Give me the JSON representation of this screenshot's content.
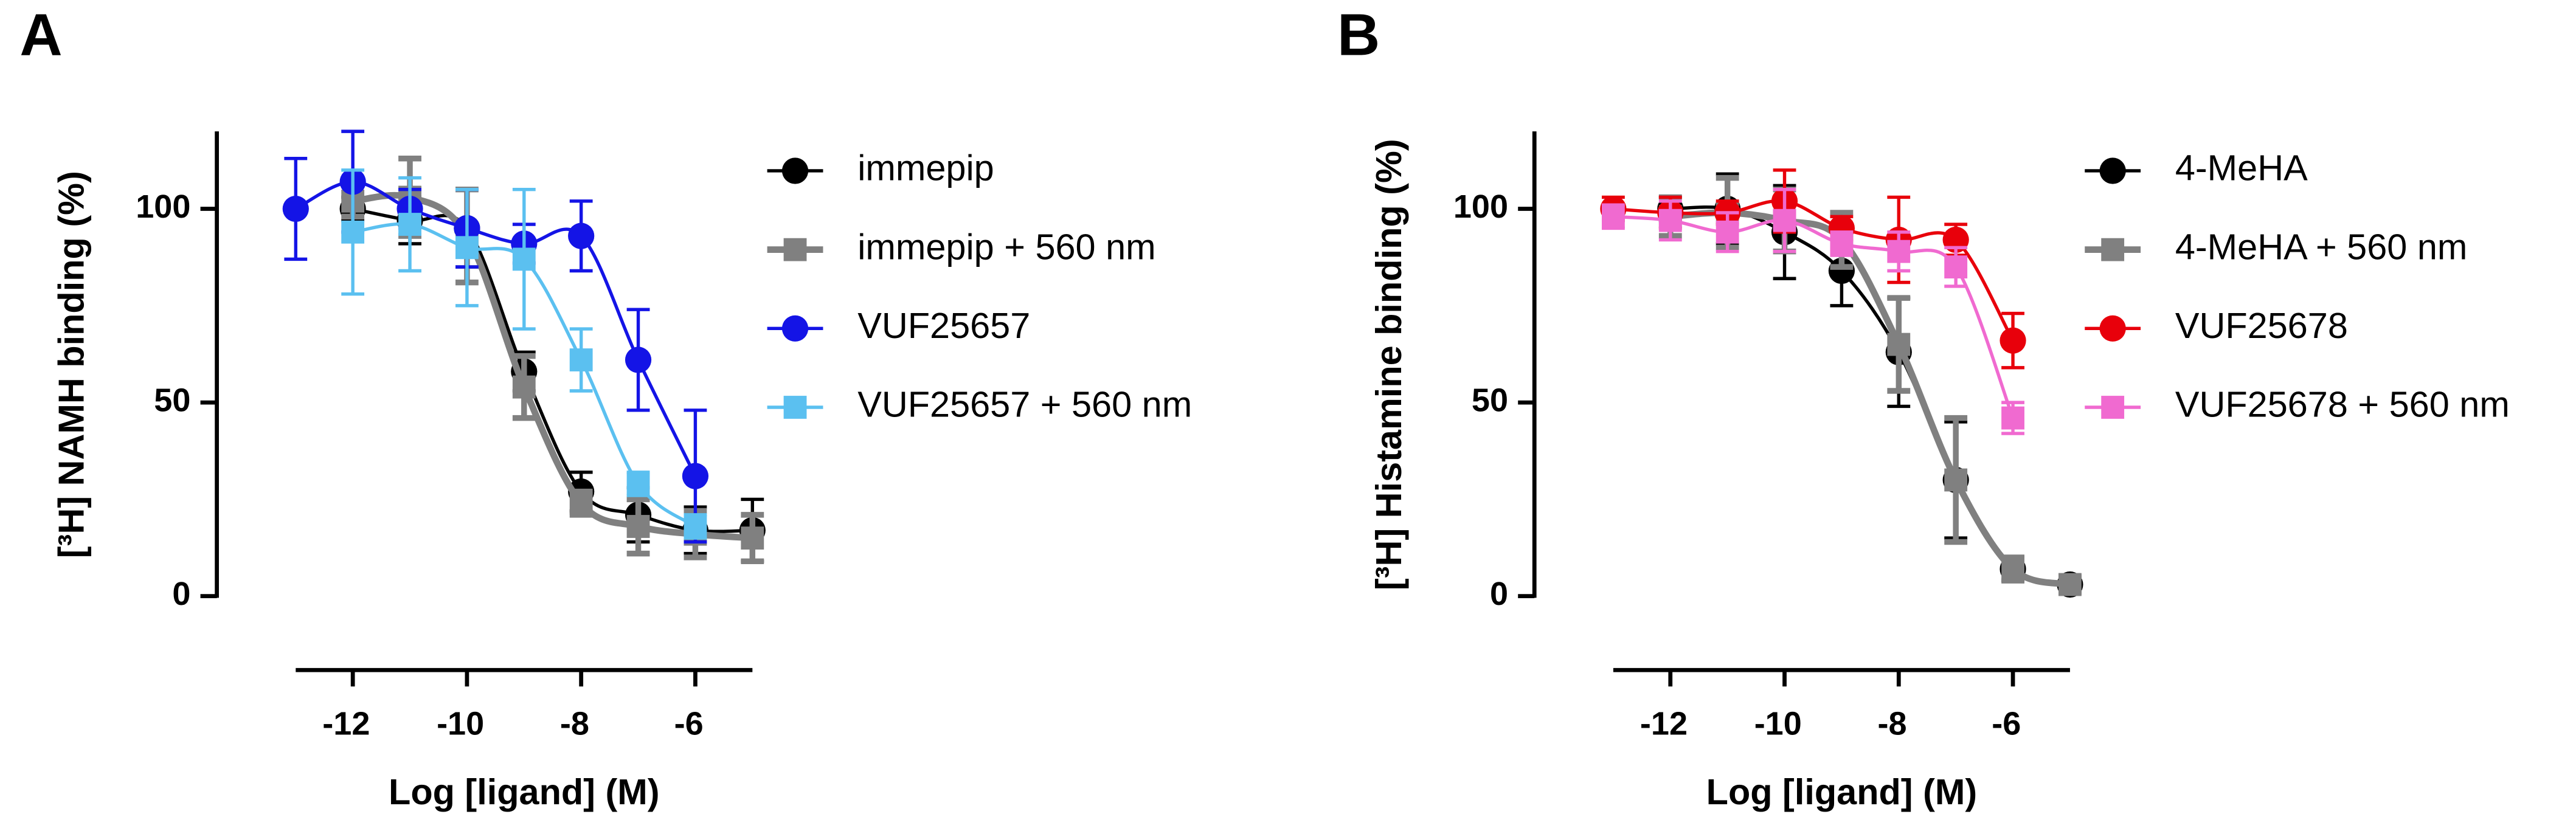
{
  "chart_data": [
    {
      "type": "scatter",
      "panel_label": "A",
      "x_label": "Log [ligand] (M)",
      "y_label": "[³H] NAMH binding (%)",
      "xlim": [
        -13,
        -5
      ],
      "ylim": [
        0,
        120
      ],
      "xticks": [
        -12,
        -10,
        -8,
        -6
      ],
      "yticks": [
        0,
        50,
        100
      ],
      "series": [
        {
          "name": "immepip",
          "color": "#000000",
          "marker": "circle",
          "x": [
            -12,
            -11,
            -10,
            -9,
            -8,
            -7,
            -6,
            -5
          ],
          "values": [
            100,
            97,
            95,
            58,
            27,
            21,
            17,
            17
          ],
          "errors": [
            3,
            6,
            10,
            5,
            5,
            7,
            6,
            8
          ]
        },
        {
          "name": "immepip + 560 nm",
          "color": "#808080",
          "marker": "square",
          "x": [
            -12,
            -11,
            -10,
            -9,
            -8,
            -7,
            -6,
            -5
          ],
          "values": [
            102,
            103,
            93,
            54,
            24,
            18,
            16,
            15
          ],
          "errors": [
            4,
            10,
            12,
            8,
            3,
            7,
            6,
            6
          ]
        },
        {
          "name": "VUF25657",
          "color": "#1414e6",
          "marker": "circle",
          "x": [
            -13,
            -12,
            -11,
            -10,
            -9,
            -8,
            -7,
            -6
          ],
          "values": [
            100,
            107,
            100,
            95,
            91,
            93,
            61,
            31
          ],
          "errors": [
            13,
            13,
            5,
            10,
            5,
            9,
            13,
            17
          ]
        },
        {
          "name": "VUF25657 + 560 nm",
          "color": "#5bc0f0",
          "marker": "square",
          "x": [
            -12,
            -11,
            -10,
            -9,
            -8,
            -7,
            -6
          ],
          "values": [
            94,
            96,
            90,
            87,
            61,
            29,
            18
          ],
          "errors": [
            16,
            12,
            15,
            18,
            8,
            3,
            3
          ]
        }
      ]
    },
    {
      "type": "scatter",
      "panel_label": "B",
      "x_label": "Log [ligand] (M)",
      "y_label": "[³H] Histamine binding (%)",
      "xlim": [
        -13,
        -5
      ],
      "ylim": [
        0,
        120
      ],
      "xticks": [
        -12,
        -10,
        -8,
        -6
      ],
      "yticks": [
        0,
        50,
        100
      ],
      "series": [
        {
          "name": "4-MeHA",
          "color": "#000000",
          "marker": "circle",
          "x": [
            -12,
            -11,
            -10,
            -9,
            -8,
            -7,
            -6,
            -5
          ],
          "values": [
            100,
            100,
            94,
            84,
            63,
            30,
            7,
            3
          ],
          "errors": [
            3,
            9,
            12,
            9,
            14,
            15,
            3,
            2
          ]
        },
        {
          "name": "4-MeHA + 560 nm",
          "color": "#808080",
          "marker": "square",
          "x": [
            -12,
            -11,
            -10,
            -9,
            -8,
            -7,
            -6,
            -5
          ],
          "values": [
            98,
            99,
            97,
            92,
            65,
            30,
            7,
            3
          ],
          "errors": [
            5,
            9,
            8,
            7,
            12,
            16,
            3,
            2
          ]
        },
        {
          "name": "VUF25678",
          "color": "#e8000b",
          "marker": "circle",
          "x": [
            -13,
            -12,
            -11,
            -10,
            -9,
            -8,
            -7,
            -6
          ],
          "values": [
            100,
            99,
            99,
            102,
            95,
            92,
            92,
            66
          ],
          "errors": [
            3,
            4,
            3,
            8,
            3,
            11,
            4,
            7
          ]
        },
        {
          "name": "VUF25678 + 560 nm",
          "color": "#f06ad0",
          "marker": "square",
          "x": [
            -13,
            -12,
            -11,
            -10,
            -9,
            -8,
            -7,
            -6
          ],
          "values": [
            98,
            97,
            94,
            97,
            91,
            89,
            85,
            46
          ],
          "errors": [
            3,
            5,
            5,
            8,
            3,
            5,
            5,
            4
          ]
        }
      ]
    }
  ]
}
